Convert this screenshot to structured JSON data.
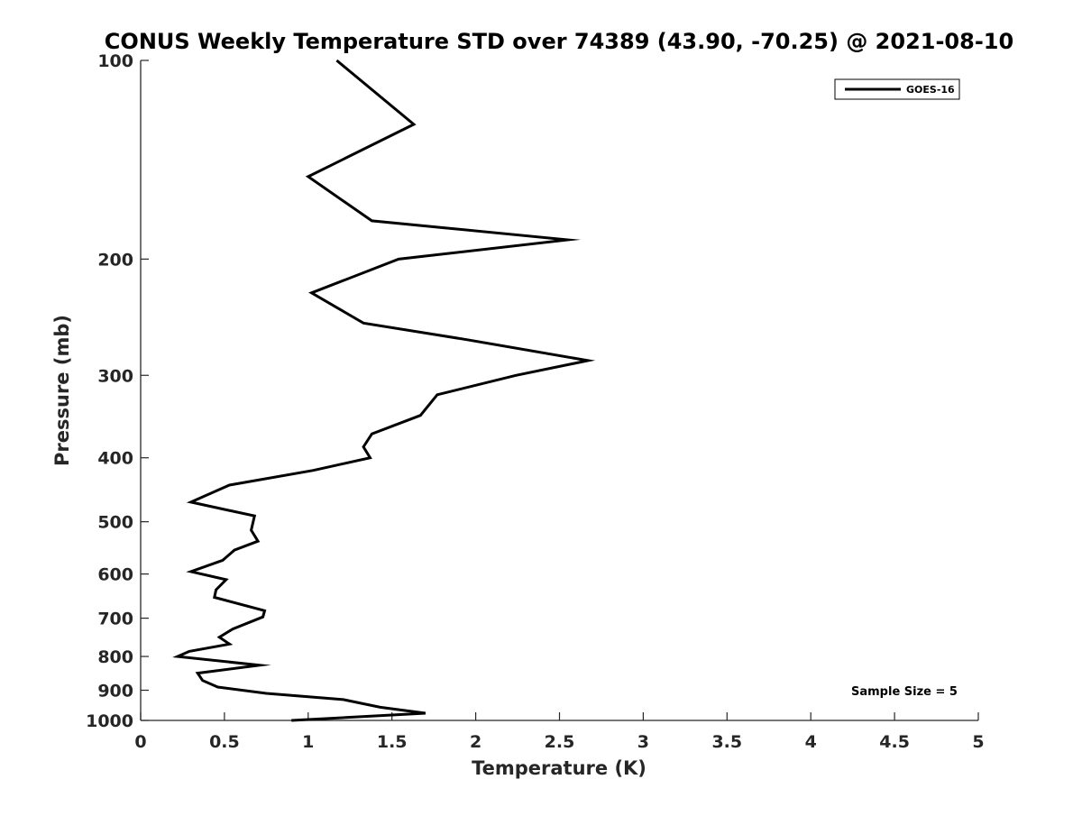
{
  "chart_data": {
    "type": "line",
    "title": "CONUS Weekly Temperature STD over 74389 (43.90, -70.25) @ 2021-08-10",
    "xlabel": "Temperature (K)",
    "ylabel": "Pressure (mb)",
    "xlim": [
      0,
      5
    ],
    "ylim": [
      100,
      1000
    ],
    "y_scale": "log",
    "y_reversed": true,
    "x_ticks": [
      "0",
      "0.5",
      "1",
      "1.5",
      "2",
      "2.5",
      "3",
      "3.5",
      "4",
      "4.5",
      "5"
    ],
    "y_ticks": [
      "100",
      "200",
      "300",
      "400",
      "500",
      "600",
      "700",
      "800",
      "900",
      "1000"
    ],
    "grid": false,
    "legend_position": "top-right",
    "series": [
      {
        "name": "GOES-16",
        "color": "#000000",
        "x": [
          1.17,
          1.63,
          1.0,
          1.38,
          2.55,
          1.54,
          1.02,
          1.33,
          1.95,
          2.67,
          2.24,
          1.77,
          1.67,
          1.38,
          1.33,
          1.37,
          1.03,
          0.53,
          0.3,
          0.68,
          0.66,
          0.7,
          0.56,
          0.49,
          0.3,
          0.51,
          0.45,
          0.44,
          0.74,
          0.73,
          0.55,
          0.47,
          0.53,
          0.29,
          0.22,
          0.71,
          0.34,
          0.37,
          0.46,
          0.75,
          1.21,
          1.43,
          1.7,
          0.9
        ],
        "y": [
          100,
          125,
          150,
          175,
          187,
          200,
          225,
          250,
          265,
          285,
          300,
          321,
          345,
          368,
          385,
          400,
          418,
          440,
          467,
          490,
          515,
          535,
          552,
          572,
          595,
          612,
          634,
          651,
          682,
          697,
          727,
          748,
          766,
          786,
          800,
          825,
          848,
          870,
          890,
          910,
          930,
          955,
          975,
          1000
        ]
      }
    ],
    "annotations": [
      "Sample Size = 5"
    ]
  }
}
